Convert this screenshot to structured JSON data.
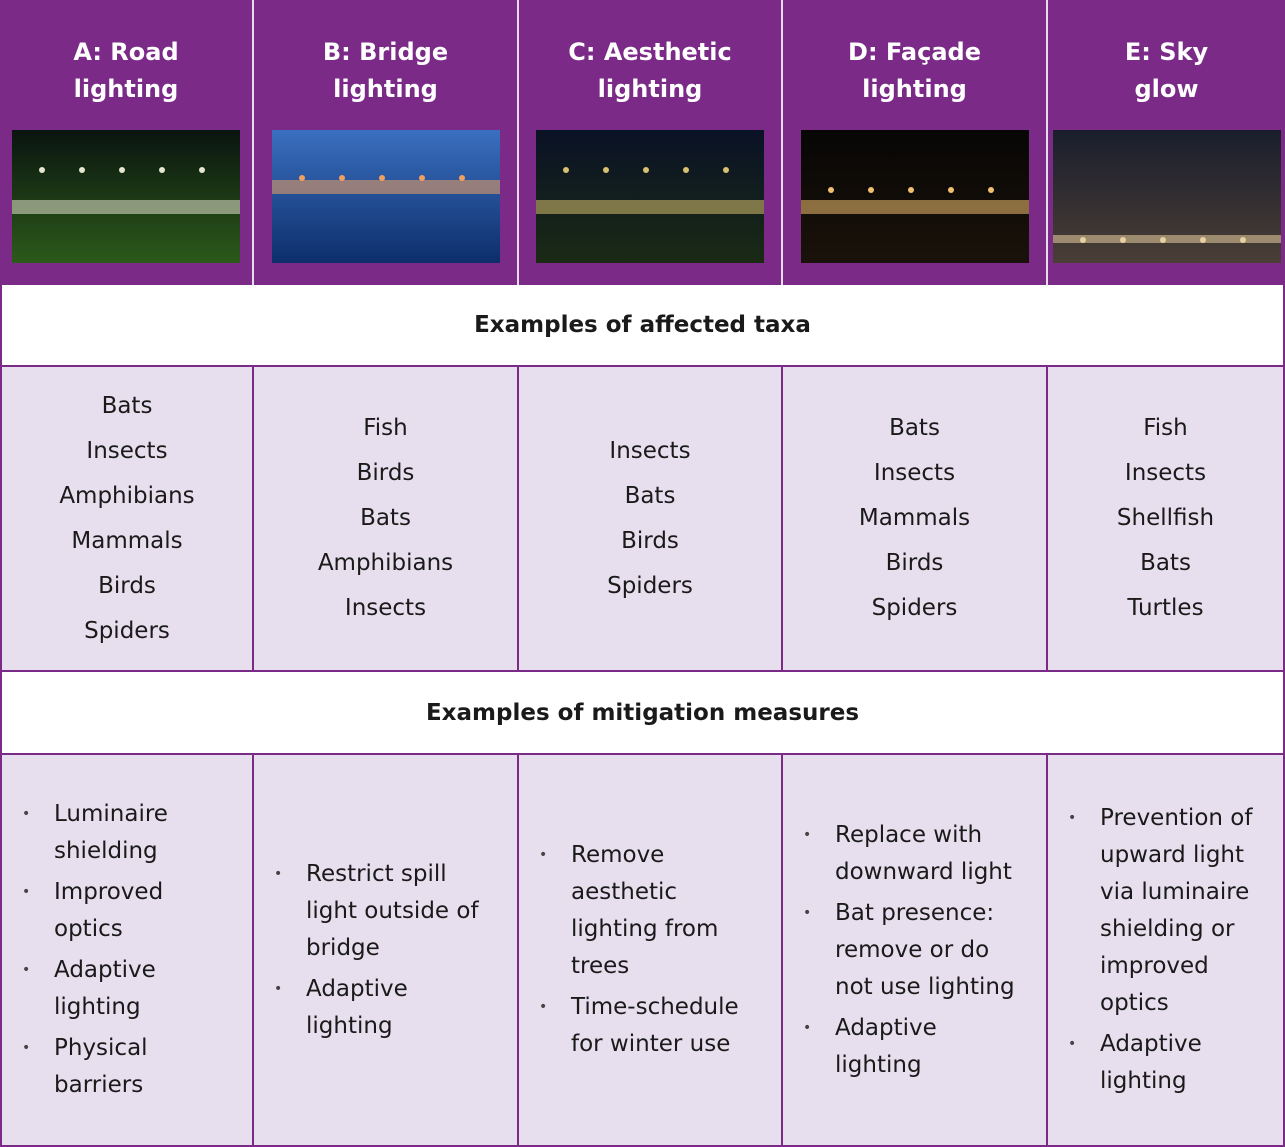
{
  "table": {
    "columns": [
      {
        "title_lines": [
          "A: Road",
          "lighting"
        ]
      },
      {
        "title_lines": [
          "B: Bridge",
          "lighting"
        ]
      },
      {
        "title_lines": [
          "C: Aesthetic",
          "lighting"
        ]
      },
      {
        "title_lines": [
          "D: Façade",
          "lighting"
        ]
      },
      {
        "title_lines": [
          "E: Sky",
          "glow"
        ]
      }
    ],
    "sections": [
      {
        "heading": "Examples of affected taxa",
        "cells": [
          [
            "Bats",
            "Insects",
            "Amphibians",
            "Mammals",
            "Birds",
            "Spiders"
          ],
          [
            "Fish",
            "Birds",
            "Bats",
            "Amphibians",
            "Insects"
          ],
          [
            "Insects",
            "Bats",
            "Birds",
            "Spiders"
          ],
          [
            "Bats",
            "Insects",
            "Mammals",
            "Birds",
            "Spiders"
          ],
          [
            "Fish",
            "Insects",
            "Shellfish",
            "Bats",
            "Turtles"
          ]
        ]
      },
      {
        "heading": "Examples of mitigation measures",
        "cells": [
          [
            "Luminaire shielding",
            "Improved optics",
            "Adaptive lighting",
            "Physical barriers"
          ],
          [
            "Restrict spill light outside of bridge",
            "Adaptive lighting"
          ],
          [
            "Remove aesthetic lighting from trees",
            "Time-schedule for winter use"
          ],
          [
            "Replace with downward light",
            "Bat presence: remove or do not use lighting",
            "Adaptive lighting"
          ],
          [
            "Prevention of upward light via luminaire shielding or improved optics",
            "Adaptive lighting"
          ]
        ]
      }
    ]
  }
}
